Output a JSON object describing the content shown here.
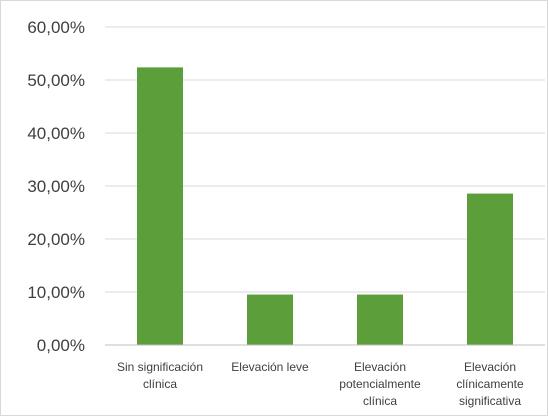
{
  "chart_data": {
    "type": "bar",
    "title": "",
    "xlabel": "",
    "ylabel": "",
    "categories": [
      [
        "Sin significación",
        "clínica"
      ],
      [
        "Elevación leve"
      ],
      [
        "Elevación",
        "potencialmente",
        "clínica"
      ],
      [
        "Elevación",
        "clínicamente",
        "significativa"
      ]
    ],
    "values": [
      52.38,
      9.52,
      9.52,
      28.57
    ],
    "ylim": [
      0,
      60
    ],
    "yticks": [
      0,
      10,
      20,
      30,
      40,
      50,
      60
    ],
    "ytick_labels": [
      "0,00%",
      "10,00%",
      "20,00%",
      "30,00%",
      "40,00%",
      "50,00%",
      "60,00%"
    ],
    "grid": true,
    "legend": "none",
    "bar_color": "#5b9e3a",
    "grid_color": "#d9d9d9",
    "axis_color": "#bfbfbf"
  }
}
